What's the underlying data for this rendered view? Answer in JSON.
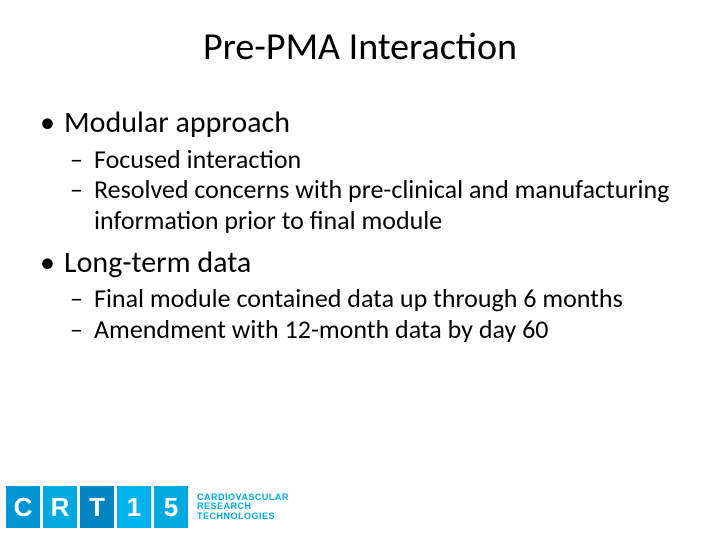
{
  "slide": {
    "title": "Pre-PMA Interaction",
    "title_fontsize": 38,
    "bullets": [
      {
        "text": "Modular approach",
        "sub": [
          "Focused interaction",
          "Resolved concerns with pre-clinical and manufacturing information prior to final module"
        ]
      },
      {
        "text": "Long-term data",
        "sub": [
          "Final module contained data up through 6 months",
          "Amendment with 12-month data by day 60"
        ]
      }
    ],
    "level1_fontsize": 30,
    "level2_fontsize": 26,
    "text_color": "#000000",
    "background_color": "#ffffff"
  },
  "logo": {
    "boxes": [
      {
        "letter": "C",
        "bg": "#0096d6"
      },
      {
        "letter": "R",
        "bg": "#00a9e0"
      },
      {
        "letter": "T",
        "bg": "#0083c1"
      },
      {
        "letter": "1",
        "bg": "#00b3ef"
      },
      {
        "letter": "5",
        "bg": "#00a9e0"
      }
    ],
    "tag_lines": [
      "CARDIOVASCULAR",
      "RESEARCH",
      "TECHNOLOGIES"
    ],
    "tag_color": "#00a9e0",
    "letter_color": "#ffffff"
  }
}
